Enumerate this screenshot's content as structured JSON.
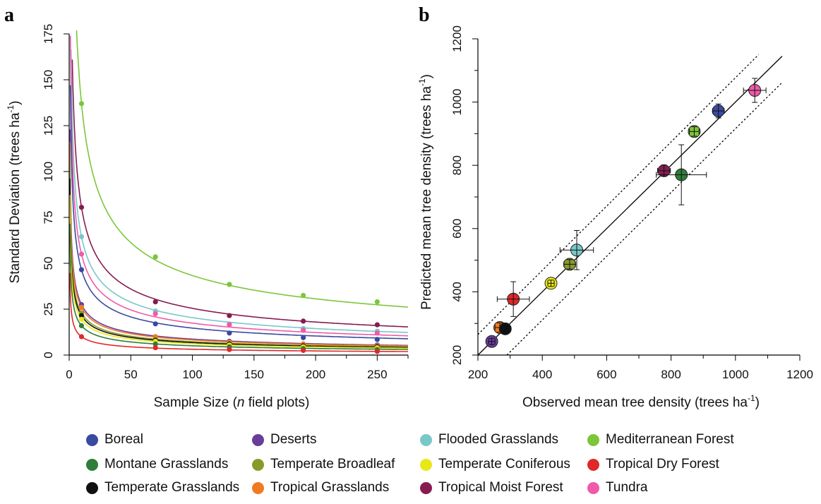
{
  "panel_a_letter": "a",
  "panel_b_letter": "b",
  "colors": {
    "Boreal": "#3a4aa0",
    "Deserts": "#6a3d9a",
    "Flooded Grasslands": "#78c8c8",
    "Mediterranean Forest": "#7cc63a",
    "Montane Grasslands": "#2e7d3a",
    "Temperate Broadleaf": "#8a9a2a",
    "Temperate Coniferous": "#e8e818",
    "Tropical Dry Forest": "#e02828",
    "Temperate Grasslands": "#111111",
    "Tropical Grasslands": "#f07a20",
    "Tropical Moist Forest": "#861c50",
    "Tundra": "#f05aa8"
  },
  "legend": [
    "Boreal",
    "Deserts",
    "Flooded Grasslands",
    "Mediterranean Forest",
    "Montane Grasslands",
    "Temperate Broadleaf",
    "Temperate Coniferous",
    "Tropical Dry Forest",
    "Temperate Grasslands",
    "Tropical Grasslands",
    "Tropical Moist Forest",
    "Tundra"
  ],
  "chart_data": [
    {
      "type": "scatter",
      "panel": "a",
      "xlabel_parts": [
        "Sample Size (",
        "n",
        " field plots)"
      ],
      "ylabel": "Standard Deviation (trees ha",
      "ylabel_sup": "-1",
      "ylabel_close": ")",
      "xlim": [
        0,
        275
      ],
      "ylim": [
        0,
        175
      ],
      "xticks": [
        0,
        50,
        100,
        150,
        200,
        250
      ],
      "yticks": [
        0,
        25,
        50,
        75,
        100,
        125,
        150,
        175
      ],
      "x": [
        10,
        70,
        130,
        190,
        250
      ],
      "series": [
        {
          "name": "Mediterranean Forest",
          "values": [
            137,
            53.5,
            38.5,
            32.5,
            29
          ]
        },
        {
          "name": "Tropical Moist Forest",
          "values": [
            80.5,
            29,
            21.5,
            18.5,
            16.5
          ]
        },
        {
          "name": "Flooded Grasslands",
          "values": [
            64.5,
            24,
            17,
            14.5,
            13
          ]
        },
        {
          "name": "Tundra",
          "values": [
            55,
            22.5,
            16.5,
            13.5,
            12
          ]
        },
        {
          "name": "Boreal",
          "values": [
            46.5,
            17,
            12,
            9.5,
            8.5
          ]
        },
        {
          "name": "Deserts",
          "values": [
            27.5,
            10,
            7.5,
            6,
            5.5
          ]
        },
        {
          "name": "Tropical Grasslands",
          "values": [
            26,
            10,
            7,
            6,
            5
          ]
        },
        {
          "name": "Temperate Broadleaf",
          "values": [
            23,
            8.5,
            6,
            5,
            4.5
          ]
        },
        {
          "name": "Temperate Grasslands",
          "values": [
            21.5,
            8,
            6,
            5,
            4.5
          ]
        },
        {
          "name": "Temperate Coniferous",
          "values": [
            19.5,
            7.5,
            5.5,
            4.5,
            4
          ]
        },
        {
          "name": "Montane Grasslands",
          "values": [
            16,
            6,
            4.5,
            3.5,
            3
          ]
        },
        {
          "name": "Tropical Dry Forest",
          "values": [
            10,
            4,
            3,
            2.5,
            2
          ]
        }
      ]
    },
    {
      "type": "scatter",
      "panel": "b",
      "xlabel": "Observed mean tree density (trees ha",
      "xlabel_sup": "-1",
      "xlabel_close": ")",
      "ylabel": "Predicted mean tree density (trees ha",
      "ylabel_sup": "-1",
      "ylabel_close": ")",
      "xlim": [
        200,
        1200
      ],
      "ylim": [
        200,
        1200
      ],
      "xticks": [
        200,
        400,
        600,
        800,
        1000,
        1200
      ],
      "yticks": [
        200,
        400,
        600,
        800,
        1000,
        1200
      ],
      "points": [
        {
          "name": "Deserts",
          "x": 243,
          "y": 243,
          "xerr": 10,
          "yerr": 10
        },
        {
          "name": "Tropical Grasslands",
          "x": 268,
          "y": 287,
          "xerr": 15,
          "yerr": 15
        },
        {
          "name": "Temperate Grasslands",
          "x": 285,
          "y": 283,
          "xerr": 10,
          "yerr": 10
        },
        {
          "name": "Tropical Dry Forest",
          "x": 310,
          "y": 377,
          "xerr": 50,
          "yerr": 55
        },
        {
          "name": "Temperate Coniferous",
          "x": 427,
          "y": 427,
          "xerr": 10,
          "yerr": 10
        },
        {
          "name": "Temperate Broadleaf",
          "x": 485,
          "y": 487,
          "xerr": 18,
          "yerr": 15
        },
        {
          "name": "Flooded Grasslands",
          "x": 507,
          "y": 532,
          "xerr": 52,
          "yerr": 62
        },
        {
          "name": "Tropical Moist Forest",
          "x": 778,
          "y": 783,
          "xerr": 20,
          "yerr": 18
        },
        {
          "name": "Montane Grasslands",
          "x": 832,
          "y": 770,
          "xerr": 78,
          "yerr": 95
        },
        {
          "name": "Mediterranean Forest",
          "x": 872,
          "y": 907,
          "xerr": 15,
          "yerr": 15
        },
        {
          "name": "Boreal",
          "x": 947,
          "y": 972,
          "xerr": 18,
          "yerr": 22
        },
        {
          "name": "Tundra",
          "x": 1060,
          "y": 1037,
          "xerr": 35,
          "yerr": 38
        }
      ],
      "reference_lines": [
        {
          "style": "solid",
          "from": [
            200,
            200
          ],
          "to": [
            1145,
            1145
          ]
        },
        {
          "style": "dotted",
          "from": [
            200,
            265
          ],
          "to": [
            1072,
            1150
          ]
        },
        {
          "style": "dotted",
          "from": [
            290,
            200
          ],
          "to": [
            1145,
            1062
          ]
        }
      ]
    }
  ]
}
